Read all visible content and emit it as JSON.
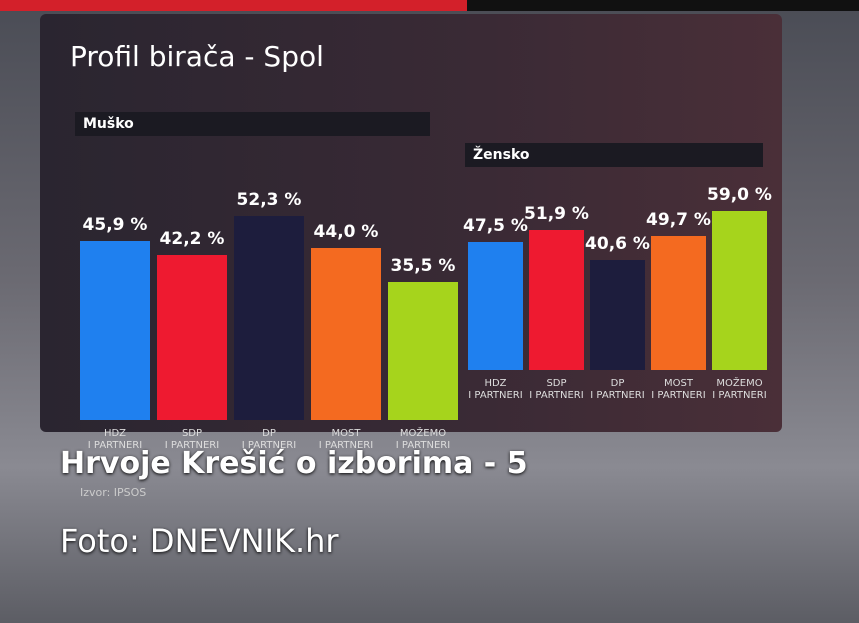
{
  "screen": {
    "title": "Profil birača - Spol",
    "source": "Izvor: IPSOS"
  },
  "chart_data": [
    {
      "type": "bar",
      "subtitle": "Muško",
      "categories": [
        "HDZ\nI PARTNERI",
        "SDP\nI PARTNERI",
        "DP\nI PARTNERI",
        "MOST\nI PARTNERI",
        "MOŽEMO\nI PARTNERI"
      ],
      "values": [
        45.9,
        42.2,
        52.3,
        44.0,
        35.5
      ],
      "value_labels": [
        "45,9 %",
        "42,2 %",
        "52,3 %",
        "44,0 %",
        "35,5 %"
      ],
      "colors": [
        "#1f80ef",
        "#ee1a30",
        "#1d1d3d",
        "#f46a20",
        "#a6d41c"
      ]
    },
    {
      "type": "bar",
      "subtitle": "Žensko",
      "categories": [
        "HDZ\nI PARTNERI",
        "SDP\nI PARTNERI",
        "DP\nI PARTNERI",
        "MOST\nI PARTNERI",
        "MOŽEMO\nI PARTNERI"
      ],
      "values": [
        47.5,
        51.9,
        40.6,
        49.7,
        59.0
      ],
      "value_labels": [
        "47,5 %",
        "51,9 %",
        "40,6 %",
        "49,7 %",
        "59,0 %"
      ],
      "colors": [
        "#1f80ef",
        "#ee1a30",
        "#1d1d3d",
        "#f46a20",
        "#a6d41c"
      ]
    }
  ],
  "caption": {
    "headline": "Hrvoje Krešić o izborima - 5",
    "credit": "Foto: DNEVNIK.hr"
  }
}
